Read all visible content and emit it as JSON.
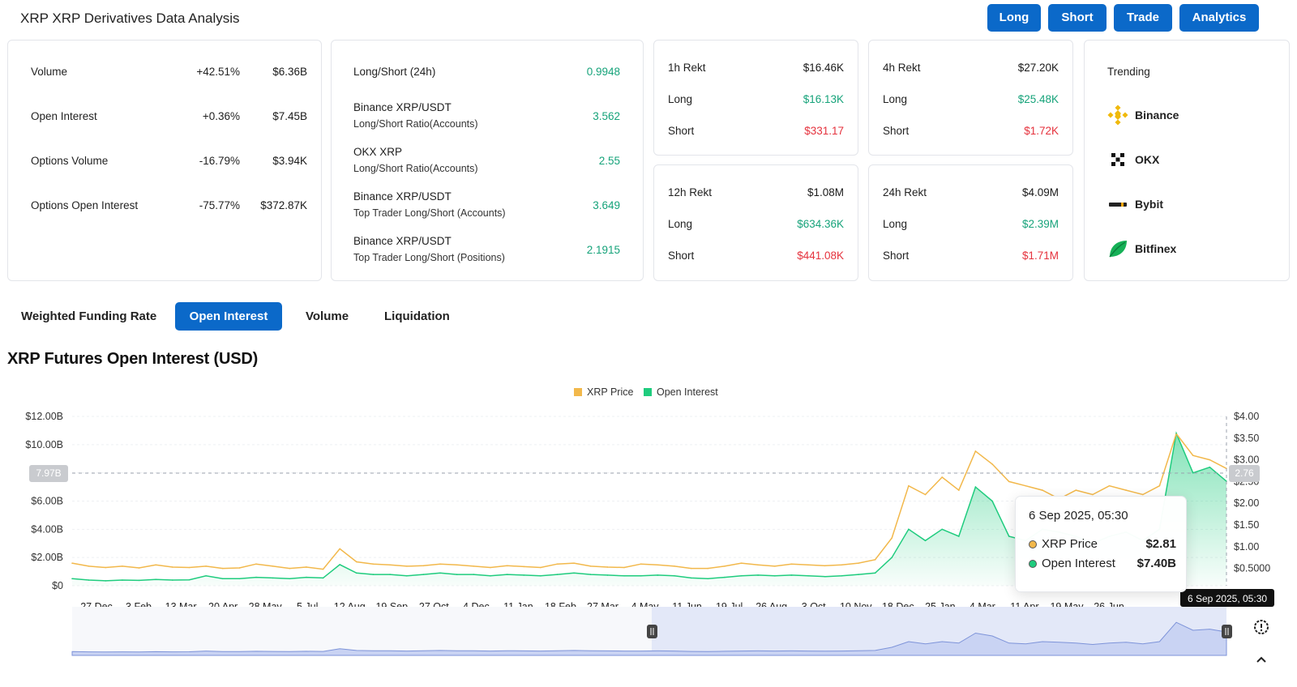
{
  "header": {
    "title": "XRP XRP Derivatives Data Analysis",
    "buttons": [
      "Long",
      "Short",
      "Trade",
      "Analytics"
    ]
  },
  "stats": [
    {
      "label": "Volume",
      "change": "+42.51%",
      "value": "$6.36B"
    },
    {
      "label": "Open Interest",
      "change": "+0.36%",
      "value": "$7.45B"
    },
    {
      "label": "Options Volume",
      "change": "-16.79%",
      "value": "$3.94K"
    },
    {
      "label": "Options Open Interest",
      "change": "-75.77%",
      "value": "$372.87K"
    }
  ],
  "ratios": [
    {
      "label": "Long/Short (24h)",
      "sub": "",
      "value": "0.9948"
    },
    {
      "label": "Binance XRP/USDT",
      "sub": "Long/Short Ratio(Accounts)",
      "value": "3.562"
    },
    {
      "label": "OKX XRP",
      "sub": "Long/Short Ratio(Accounts)",
      "value": "2.55"
    },
    {
      "label": "Binance XRP/USDT",
      "sub": "Top Trader Long/Short (Accounts)",
      "value": "3.649"
    },
    {
      "label": "Binance XRP/USDT",
      "sub": "Top Trader Long/Short (Positions)",
      "value": "2.1915"
    }
  ],
  "rekt": [
    {
      "title": "1h Rekt",
      "total": "$16.46K",
      "long_label": "Long",
      "long": "$16.13K",
      "short_label": "Short",
      "short": "$331.17"
    },
    {
      "title": "4h Rekt",
      "total": "$27.20K",
      "long_label": "Long",
      "long": "$25.48K",
      "short_label": "Short",
      "short": "$1.72K"
    },
    {
      "title": "12h Rekt",
      "total": "$1.08M",
      "long_label": "Long",
      "long": "$634.36K",
      "short_label": "Short",
      "short": "$441.08K"
    },
    {
      "title": "24h Rekt",
      "total": "$4.09M",
      "long_label": "Long",
      "long": "$2.39M",
      "short_label": "Short",
      "short": "$1.71M"
    }
  ],
  "trending": {
    "title": "Trending",
    "exchanges": [
      {
        "name": "Binance",
        "icon": "binance-logo-icon"
      },
      {
        "name": "OKX",
        "icon": "okx-logo-icon"
      },
      {
        "name": "Bybit",
        "icon": "bybit-logo-icon"
      },
      {
        "name": "Bitfinex",
        "icon": "bitfinex-logo-icon"
      }
    ]
  },
  "tabs": [
    {
      "label": "Weighted Funding Rate",
      "active": false
    },
    {
      "label": "Open Interest",
      "active": true
    },
    {
      "label": "Volume",
      "active": false
    },
    {
      "label": "Liquidation",
      "active": false
    }
  ],
  "colors": {
    "accent": "#0b69c9",
    "positive": "#16a37a",
    "negative": "#e5323d",
    "price": "#f2b84b",
    "oi": "#1fcc7e"
  },
  "chart_data": {
    "type": "line",
    "title": "XRP Futures Open Interest (USD)",
    "legend": [
      "XRP Price",
      "Open Interest"
    ],
    "legend_position": "top-center",
    "grid": true,
    "y_left_ticks": [
      "$12.00B",
      "$10.00B",
      "$8.00B",
      "$6.00B",
      "$4.00B",
      "$2.00B",
      "$0"
    ],
    "y_left_range": [
      0,
      12
    ],
    "y_right_ticks": [
      "$4.00",
      "$3.50",
      "$3.00",
      "$2.50",
      "$2.00",
      "$1.50",
      "$1.00",
      "$0.5000"
    ],
    "y_right_range": [
      0.1,
      4.0
    ],
    "x_ticks": [
      "27 Dec",
      "3 Feb",
      "13 Mar",
      "20 Apr",
      "28 May",
      "5 Jul",
      "12 Aug",
      "19 Sep",
      "27 Oct",
      "4 Dec",
      "11 Jan",
      "18 Feb",
      "27 Mar",
      "4 May",
      "11 Jun",
      "19 Jul",
      "26 Aug",
      "3 Oct",
      "10 Nov",
      "18 Dec",
      "25 Jan",
      "4 Mar",
      "11 Apr",
      "19 May",
      "26 Jun"
    ],
    "crosshair_left_label": "7.97B",
    "crosshair_right_label": "2.76",
    "crosshair_x_label": "6 Sep 2025, 05:30",
    "series": [
      {
        "name": "XRP Price",
        "unit": "USD",
        "values": [
          0.62,
          0.55,
          0.52,
          0.55,
          0.51,
          0.58,
          0.53,
          0.52,
          0.55,
          0.5,
          0.51,
          0.6,
          0.55,
          0.5,
          0.53,
          0.48,
          0.95,
          0.65,
          0.6,
          0.58,
          0.55,
          0.56,
          0.6,
          0.58,
          0.55,
          0.52,
          0.56,
          0.54,
          0.52,
          0.6,
          0.62,
          0.55,
          0.53,
          0.52,
          0.6,
          0.58,
          0.55,
          0.5,
          0.5,
          0.55,
          0.62,
          0.58,
          0.55,
          0.6,
          0.58,
          0.56,
          0.58,
          0.62,
          0.7,
          1.2,
          2.4,
          2.2,
          2.6,
          2.3,
          3.2,
          2.9,
          2.5,
          2.4,
          2.3,
          2.1,
          2.3,
          2.2,
          2.4,
          2.3,
          2.2,
          2.4,
          3.6,
          3.1,
          3.0,
          2.8
        ]
      },
      {
        "name": "Open Interest",
        "unit": "USD billions",
        "values": [
          0.5,
          0.4,
          0.35,
          0.4,
          0.38,
          0.45,
          0.4,
          0.42,
          0.7,
          0.5,
          0.5,
          0.6,
          0.55,
          0.5,
          0.6,
          0.55,
          1.5,
          0.9,
          0.8,
          0.8,
          0.7,
          0.8,
          0.9,
          0.8,
          0.8,
          0.7,
          0.8,
          0.75,
          0.7,
          0.8,
          0.9,
          0.8,
          0.75,
          0.7,
          0.7,
          0.75,
          0.7,
          0.55,
          0.5,
          0.6,
          0.7,
          0.75,
          0.7,
          0.75,
          0.7,
          0.65,
          0.7,
          0.8,
          0.9,
          2.0,
          4.0,
          3.2,
          4.0,
          3.5,
          7.0,
          6.0,
          3.5,
          3.2,
          4.0,
          3.8,
          3.5,
          3.0,
          3.5,
          3.8,
          3.2,
          4.0,
          10.8,
          8.0,
          8.4,
          7.4
        ]
      }
    ]
  },
  "tooltip": {
    "date": "6 Sep 2025, 05:30",
    "price_label": "XRP Price",
    "price_value": "$2.81",
    "oi_label": "Open Interest",
    "oi_value": "$7.40B"
  }
}
